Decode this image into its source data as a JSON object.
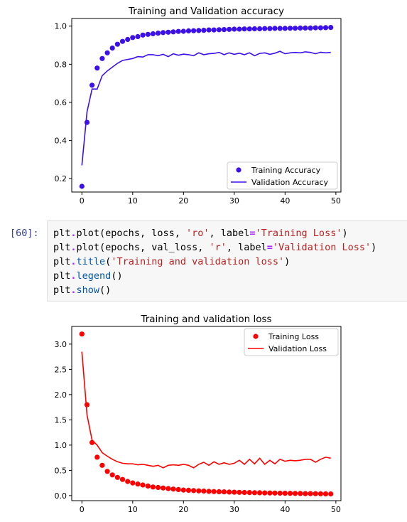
{
  "chart_data": [
    {
      "type": "line",
      "title": "Training and Validation accuracy",
      "xlim": [
        -2,
        51
      ],
      "ylim": [
        0.13,
        1.04
      ],
      "xticks": [
        0,
        10,
        20,
        30,
        40,
        50
      ],
      "yticks": [
        0.2,
        0.4,
        0.6,
        0.8,
        1.0
      ],
      "ytick_labels": [
        "0.2",
        "0.4",
        "0.6",
        "0.8",
        "1.0"
      ],
      "legend_position": "lower-right",
      "series": [
        {
          "name": "Training Accuracy",
          "style": "points",
          "color": "#3c10e8",
          "x": [
            0,
            1,
            2,
            3,
            4,
            5,
            6,
            7,
            8,
            9,
            10,
            11,
            12,
            13,
            14,
            15,
            16,
            17,
            18,
            19,
            20,
            21,
            22,
            23,
            24,
            25,
            26,
            27,
            28,
            29,
            30,
            31,
            32,
            33,
            34,
            35,
            36,
            37,
            38,
            39,
            40,
            41,
            42,
            43,
            44,
            45,
            46,
            47,
            48,
            49
          ],
          "y": [
            0.16,
            0.495,
            0.69,
            0.78,
            0.83,
            0.86,
            0.885,
            0.905,
            0.92,
            0.93,
            0.94,
            0.945,
            0.953,
            0.957,
            0.96,
            0.963,
            0.966,
            0.968,
            0.97,
            0.972,
            0.973,
            0.975,
            0.976,
            0.977,
            0.978,
            0.98,
            0.98,
            0.981,
            0.982,
            0.983,
            0.984,
            0.984,
            0.985,
            0.985,
            0.986,
            0.986,
            0.987,
            0.987,
            0.988,
            0.988,
            0.988,
            0.989,
            0.989,
            0.99,
            0.99,
            0.99,
            0.991,
            0.991,
            0.992,
            0.993
          ]
        },
        {
          "name": "Validation Accuracy",
          "style": "line",
          "color": "#3c10e8",
          "x": [
            0,
            1,
            2,
            3,
            4,
            5,
            6,
            7,
            8,
            9,
            10,
            11,
            12,
            13,
            14,
            15,
            16,
            17,
            18,
            19,
            20,
            21,
            22,
            23,
            24,
            25,
            26,
            27,
            28,
            29,
            30,
            31,
            32,
            33,
            34,
            35,
            36,
            37,
            38,
            39,
            40,
            41,
            42,
            43,
            44,
            45,
            46,
            47,
            48,
            49
          ],
          "y": [
            0.27,
            0.55,
            0.67,
            0.67,
            0.74,
            0.765,
            0.785,
            0.805,
            0.82,
            0.825,
            0.83,
            0.84,
            0.838,
            0.85,
            0.85,
            0.845,
            0.852,
            0.84,
            0.855,
            0.847,
            0.853,
            0.85,
            0.845,
            0.86,
            0.85,
            0.855,
            0.857,
            0.862,
            0.85,
            0.86,
            0.852,
            0.858,
            0.85,
            0.86,
            0.845,
            0.857,
            0.86,
            0.852,
            0.858,
            0.868,
            0.855,
            0.86,
            0.862,
            0.86,
            0.865,
            0.862,
            0.855,
            0.863,
            0.86,
            0.862
          ]
        }
      ]
    },
    {
      "type": "line",
      "title": "Training and validation loss",
      "xlim": [
        -2,
        51
      ],
      "ylim": [
        -0.1,
        3.35
      ],
      "xticks": [
        0,
        10,
        20,
        30,
        40,
        50
      ],
      "yticks": [
        0.0,
        0.5,
        1.0,
        1.5,
        2.0,
        2.5,
        3.0
      ],
      "ytick_labels": [
        "0.0",
        "0.5",
        "1.0",
        "1.5",
        "2.0",
        "2.5",
        "3.0"
      ],
      "legend_position": "top-right",
      "series": [
        {
          "name": "Training Loss",
          "style": "points",
          "color": "#ff0000",
          "x": [
            0,
            1,
            2,
            3,
            4,
            5,
            6,
            7,
            8,
            9,
            10,
            11,
            12,
            13,
            14,
            15,
            16,
            17,
            18,
            19,
            20,
            21,
            22,
            23,
            24,
            25,
            26,
            27,
            28,
            29,
            30,
            31,
            32,
            33,
            34,
            35,
            36,
            37,
            38,
            39,
            40,
            41,
            42,
            43,
            44,
            45,
            46,
            47,
            48,
            49
          ],
          "y": [
            3.2,
            1.8,
            1.05,
            0.76,
            0.6,
            0.48,
            0.41,
            0.36,
            0.32,
            0.28,
            0.25,
            0.23,
            0.21,
            0.19,
            0.17,
            0.16,
            0.15,
            0.14,
            0.13,
            0.12,
            0.11,
            0.105,
            0.1,
            0.095,
            0.09,
            0.085,
            0.08,
            0.078,
            0.075,
            0.07,
            0.068,
            0.065,
            0.062,
            0.06,
            0.058,
            0.056,
            0.054,
            0.052,
            0.05,
            0.048,
            0.046,
            0.045,
            0.043,
            0.042,
            0.04,
            0.039,
            0.038,
            0.036,
            0.035,
            0.034
          ]
        },
        {
          "name": "Validation Loss",
          "style": "line",
          "color": "#ff0000",
          "x": [
            0,
            1,
            2,
            3,
            4,
            5,
            6,
            7,
            8,
            9,
            10,
            11,
            12,
            13,
            14,
            15,
            16,
            17,
            18,
            19,
            20,
            21,
            22,
            23,
            24,
            25,
            26,
            27,
            28,
            29,
            30,
            31,
            32,
            33,
            34,
            35,
            36,
            37,
            38,
            39,
            40,
            41,
            42,
            43,
            44,
            45,
            46,
            47,
            48,
            49
          ],
          "y": [
            2.85,
            1.6,
            1.1,
            1.0,
            0.85,
            0.78,
            0.72,
            0.67,
            0.64,
            0.63,
            0.63,
            0.61,
            0.62,
            0.6,
            0.58,
            0.6,
            0.55,
            0.6,
            0.61,
            0.6,
            0.62,
            0.6,
            0.55,
            0.62,
            0.66,
            0.6,
            0.67,
            0.62,
            0.65,
            0.62,
            0.64,
            0.7,
            0.62,
            0.72,
            0.63,
            0.74,
            0.62,
            0.7,
            0.63,
            0.72,
            0.68,
            0.7,
            0.69,
            0.7,
            0.72,
            0.72,
            0.66,
            0.72,
            0.76,
            0.74
          ]
        }
      ]
    }
  ],
  "cell": {
    "prompt": "[60]:",
    "lines": [
      [
        {
          "t": "plt",
          "c": "nm"
        },
        {
          "t": ".",
          "c": "op"
        },
        {
          "t": "plot",
          "c": "fn"
        },
        {
          "t": "(epochs, loss, ",
          "c": "nm"
        },
        {
          "t": "'ro'",
          "c": "str"
        },
        {
          "t": ", label",
          "c": "nm"
        },
        {
          "t": "=",
          "c": "op"
        },
        {
          "t": "'Training Loss'",
          "c": "str"
        },
        {
          "t": ")",
          "c": "nm"
        }
      ],
      [
        {
          "t": "plt",
          "c": "nm"
        },
        {
          "t": ".",
          "c": "op"
        },
        {
          "t": "plot",
          "c": "fn"
        },
        {
          "t": "(epochs, val_loss, ",
          "c": "nm"
        },
        {
          "t": "'r'",
          "c": "str"
        },
        {
          "t": ", label",
          "c": "nm"
        },
        {
          "t": "=",
          "c": "op"
        },
        {
          "t": "'Validation Loss'",
          "c": "str"
        },
        {
          "t": ")",
          "c": "nm"
        }
      ],
      [
        {
          "t": "plt",
          "c": "nm"
        },
        {
          "t": ".",
          "c": "op"
        },
        {
          "t": "title",
          "c": "call"
        },
        {
          "t": "(",
          "c": "nm"
        },
        {
          "t": "'Training and validation loss'",
          "c": "str"
        },
        {
          "t": ")",
          "c": "nm"
        }
      ],
      [
        {
          "t": "plt",
          "c": "nm"
        },
        {
          "t": ".",
          "c": "op"
        },
        {
          "t": "legend",
          "c": "call"
        },
        {
          "t": "()",
          "c": "nm"
        }
      ],
      [
        {
          "t": "plt",
          "c": "nm"
        },
        {
          "t": ".",
          "c": "op"
        },
        {
          "t": "show",
          "c": "call"
        },
        {
          "t": "()",
          "c": "nm"
        }
      ]
    ]
  }
}
